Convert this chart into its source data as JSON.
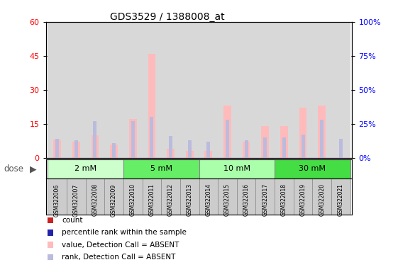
{
  "title": "GDS3529 / 1388008_at",
  "samples": [
    "GSM322006",
    "GSM322007",
    "GSM322008",
    "GSM322009",
    "GSM322010",
    "GSM322011",
    "GSM322012",
    "GSM322013",
    "GSM322014",
    "GSM322015",
    "GSM322016",
    "GSM322017",
    "GSM322018",
    "GSM322019",
    "GSM322020",
    "GSM322021"
  ],
  "absent_count": [
    8,
    7,
    10,
    6,
    17,
    46,
    4,
    3,
    3,
    23,
    7,
    14,
    14,
    22,
    23,
    0
  ],
  "absent_rank": [
    14,
    13,
    27,
    11,
    27,
    30,
    16,
    13,
    12,
    28,
    13,
    15,
    15,
    17,
    28,
    14
  ],
  "dose_groups": [
    {
      "label": "2 mM",
      "start": 0,
      "end": 3,
      "color": "#ccffcc"
    },
    {
      "label": "5 mM",
      "start": 4,
      "end": 7,
      "color": "#66ee66"
    },
    {
      "label": "10 mM",
      "start": 8,
      "end": 11,
      "color": "#aaffaa"
    },
    {
      "label": "30 mM",
      "start": 12,
      "end": 15,
      "color": "#44dd44"
    }
  ],
  "ylim_left": [
    0,
    60
  ],
  "ylim_right": [
    0,
    100
  ],
  "yticks_left": [
    0,
    15,
    30,
    45,
    60
  ],
  "yticks_right": [
    0,
    25,
    50,
    75,
    100
  ],
  "bar_color_absent": "#ffbbbb",
  "rank_color_absent": "#bbbbdd",
  "background_color": "#ffffff",
  "plot_bg": "#ffffff",
  "legend_items": [
    {
      "color": "#cc2222",
      "label": "count"
    },
    {
      "color": "#2222aa",
      "label": "percentile rank within the sample"
    },
    {
      "color": "#ffbbbb",
      "label": "value, Detection Call = ABSENT"
    },
    {
      "color": "#bbbbdd",
      "label": "rank, Detection Call = ABSENT"
    }
  ]
}
